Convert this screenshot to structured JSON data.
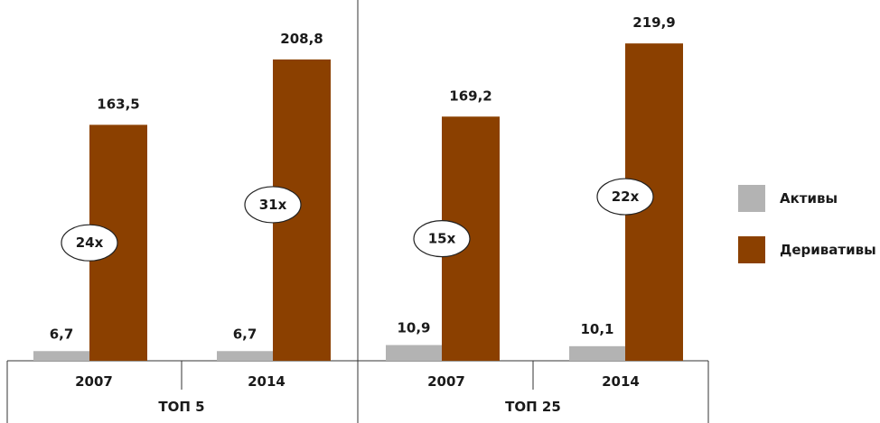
{
  "chart_data": {
    "type": "bar",
    "groups": [
      {
        "label": "ТОП 5",
        "categories": [
          {
            "label": "2007",
            "assets": 6.7,
            "assets_label": "6,7",
            "derivatives": 163.5,
            "derivatives_label": "163,5",
            "ratio": "24x"
          },
          {
            "label": "2014",
            "assets": 6.7,
            "assets_label": "6,7",
            "derivatives": 208.8,
            "derivatives_label": "208,8",
            "ratio": "31x"
          }
        ]
      },
      {
        "label": "ТОП 25",
        "categories": [
          {
            "label": "2007",
            "assets": 10.9,
            "assets_label": "10,9",
            "derivatives": 169.2,
            "derivatives_label": "169,2",
            "ratio": "15x"
          },
          {
            "label": "2014",
            "assets": 10.1,
            "assets_label": "10,1",
            "derivatives": 219.9,
            "derivatives_label": "219,9",
            "ratio": "22x"
          }
        ]
      }
    ],
    "series": [
      {
        "key": "assets",
        "name": "Активы",
        "color": "#b3b3b3"
      },
      {
        "key": "derivatives",
        "name": "Деривативы",
        "color": "#8b4000"
      }
    ],
    "legend_position": "right",
    "grid": false
  }
}
